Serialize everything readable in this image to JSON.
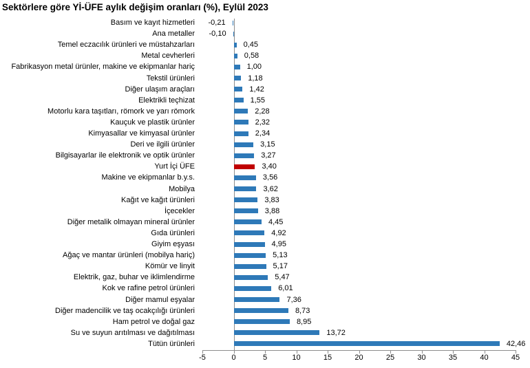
{
  "chart_data": {
    "type": "bar",
    "orientation": "horizontal",
    "title": "Sektörlere göre Yİ-ÜFE aylık değişim oranları (%), Eylül 2023",
    "categories": [
      "Basım ve kayıt hizmetleri",
      "Ana metaller",
      "Temel eczacılık ürünleri ve müstahzarları",
      "Metal cevherleri",
      "Fabrikasyon metal ürünler, makine ve ekipmanlar hariç",
      "Tekstil ürünleri",
      "Diğer ulaşım araçları",
      "Elektrikli teçhizat",
      "Motorlu kara taşıtları, römork ve yarı römork",
      "Kauçuk ve plastik ürünler",
      "Kimyasallar ve kimyasal ürünler",
      "Deri ve ilgili ürünler",
      "Bilgisayarlar ile elektronik ve optik ürünler",
      "Yurt İçi ÜFE",
      "Makine ve ekipmanlar b.y.s.",
      "Mobilya",
      "Kağıt ve kağıt ürünleri",
      "İçecekler",
      "Diğer metalik olmayan mineral ürünler",
      "Gıda ürünleri",
      "Giyim eşyası",
      "Ağaç ve mantar ürünleri (mobilya hariç)",
      "Kömür ve linyit",
      "Elektrik, gaz, buhar ve iklimlendirme",
      "Kok ve rafine petrol ürünleri",
      "Diğer mamul eşyalar",
      "Diğer madencilik ve taş ocakçılığı ürünleri",
      "Ham petrol ve doğal gaz",
      "Su ve suyun arıtılması ve dağıtılması",
      "Tütün ürünleri"
    ],
    "values": [
      -0.21,
      -0.1,
      0.45,
      0.58,
      1.0,
      1.18,
      1.42,
      1.55,
      2.28,
      2.32,
      2.34,
      3.15,
      3.27,
      3.4,
      3.56,
      3.62,
      3.83,
      3.88,
      4.45,
      4.92,
      4.95,
      5.13,
      5.17,
      5.47,
      6.01,
      7.36,
      8.73,
      8.95,
      13.72,
      42.46
    ],
    "value_labels": [
      "-0,21",
      "-0,10",
      "0,45",
      "0,58",
      "1,00",
      "1,18",
      "1,42",
      "1,55",
      "2,28",
      "2,32",
      "2,34",
      "3,15",
      "3,27",
      "3,40",
      "3,56",
      "3,62",
      "3,83",
      "3,88",
      "4,45",
      "4,92",
      "4,95",
      "5,13",
      "5,17",
      "5,47",
      "6,01",
      "7,36",
      "8,73",
      "8,95",
      "13,72",
      "42,46"
    ],
    "highlight_category": "Yurt İçi ÜFE",
    "highlight_index": 13,
    "x_tick_labels": [
      "-5",
      "0",
      "5",
      "10",
      "15",
      "20",
      "25",
      "30",
      "35",
      "40",
      "45"
    ],
    "x_ticks": [
      -5,
      0,
      5,
      10,
      15,
      20,
      25,
      30,
      35,
      40,
      45
    ],
    "xlim": [
      -5,
      45
    ],
    "xlabel": "",
    "ylabel": "",
    "grid": false,
    "legend": null,
    "colors": {
      "bar": "#2E79B8",
      "highlight": "#C00000",
      "axis": "#8C8C8C",
      "text": "#000000",
      "background": "#FFFFFF"
    }
  }
}
